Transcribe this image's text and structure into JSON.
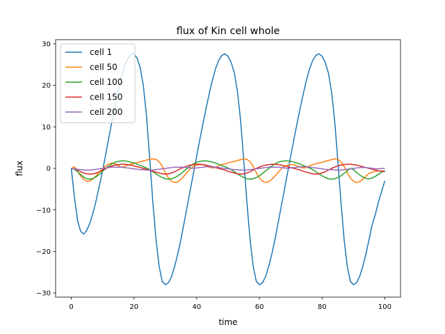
{
  "chart_data": {
    "type": "line",
    "title": "flux of Kin cell whole",
    "xlabel": "time",
    "ylabel": "flux",
    "xlim": [
      -5,
      105
    ],
    "ylim": [
      -31,
      31
    ],
    "xticks": [
      0,
      20,
      40,
      60,
      80,
      100
    ],
    "yticks": [
      -30,
      -20,
      -10,
      0,
      10,
      20,
      30
    ],
    "grid": false,
    "legend_position": "upper-left",
    "series": [
      {
        "name": "cell 1",
        "color": "#1f77b4",
        "x": [
          0,
          1,
          2,
          3,
          4,
          5,
          6,
          7,
          8,
          9,
          10,
          11,
          12,
          13,
          14,
          15,
          16,
          17,
          18,
          19,
          20,
          21,
          22,
          23,
          24,
          25,
          26,
          27,
          28,
          29,
          30,
          31,
          32,
          33,
          34,
          35,
          36,
          37,
          38,
          39,
          40,
          41,
          42,
          43,
          44,
          45,
          46,
          47,
          48,
          49,
          50,
          51,
          52,
          53,
          54,
          55,
          56,
          57,
          58,
          59,
          60,
          61,
          62,
          63,
          64,
          65,
          66,
          67,
          68,
          69,
          70,
          71,
          72,
          73,
          74,
          75,
          76,
          77,
          78,
          79,
          80,
          81,
          82,
          83,
          84,
          85,
          86,
          87,
          88,
          89,
          90,
          91,
          92,
          93,
          94,
          95,
          96,
          97,
          98,
          99,
          100
        ],
        "y": [
          0,
          -7,
          -12.5,
          -15.2,
          -15.8,
          -14.8,
          -13,
          -10.5,
          -7.5,
          -4,
          -0.5,
          3.5,
          7.5,
          11.5,
          15.2,
          18.8,
          22,
          24.6,
          26.4,
          27.5,
          27.6,
          26.5,
          24.2,
          19.8,
          12.5,
          2.5,
          -8,
          -17,
          -23.5,
          -27.2,
          -28,
          -27.5,
          -26,
          -23.5,
          -20.5,
          -17,
          -13,
          -9,
          -5,
          -1,
          3,
          7,
          10.8,
          14.5,
          18,
          21.2,
          24,
          26,
          27.2,
          27.6,
          27,
          25.5,
          23,
          18.5,
          11.5,
          2,
          -8,
          -17,
          -23.5,
          -27.2,
          -28,
          -27.5,
          -26,
          -23.5,
          -20.5,
          -17,
          -13,
          -9,
          -5,
          -1,
          3,
          7,
          10.8,
          14.5,
          18,
          21.2,
          24,
          26,
          27.2,
          27.6,
          27,
          25.5,
          23,
          18.5,
          11.5,
          2,
          -8,
          -17,
          -23.5,
          -27.2,
          -28,
          -27.5,
          -26,
          -23.5,
          -20.5,
          -17,
          -13.5,
          -11,
          -8,
          -5.5,
          -3
        ]
      },
      {
        "name": "cell 50",
        "color": "#ff7f0e",
        "x": [
          0,
          1,
          2,
          3,
          4,
          5,
          6,
          7,
          8,
          9,
          10,
          11,
          12,
          13,
          14,
          15,
          16,
          17,
          18,
          19,
          20,
          21,
          22,
          23,
          24,
          25,
          26,
          27,
          28,
          29,
          30,
          31,
          32,
          33,
          34,
          35,
          36,
          37,
          38,
          39,
          40,
          41,
          42,
          43,
          44,
          45,
          46,
          47,
          48,
          49,
          50,
          51,
          52,
          53,
          54,
          55,
          56,
          57,
          58,
          59,
          60,
          61,
          62,
          63,
          64,
          65,
          66,
          67,
          68,
          69,
          70,
          71,
          72,
          73,
          74,
          75,
          76,
          77,
          78,
          79,
          80,
          81,
          82,
          83,
          84,
          85,
          86,
          87,
          88,
          89,
          90,
          91,
          92,
          93,
          94,
          95,
          96,
          97,
          98,
          99,
          100
        ],
        "y": [
          0,
          0.4,
          -0.8,
          -1.8,
          -2.7,
          -3.1,
          -3.0,
          -2.5,
          -1.7,
          -0.8,
          0,
          0.6,
          1.1,
          1.3,
          1.1,
          0.6,
          0.3,
          0.5,
          0.8,
          1.0,
          1.2,
          1.4,
          1.6,
          1.8,
          2.0,
          2.2,
          2.3,
          2.2,
          1.6,
          0.5,
          -1.0,
          -2.3,
          -3.1,
          -3.4,
          -3.2,
          -2.6,
          -1.8,
          -0.9,
          -0.1,
          0.5,
          0.8,
          0.9,
          0.9,
          0.6,
          0.3,
          0.1,
          0.2,
          0.6,
          0.9,
          1.1,
          1.3,
          1.5,
          1.7,
          1.9,
          2.1,
          2.3,
          2.2,
          1.6,
          0.5,
          -1.0,
          -2.3,
          -3.1,
          -3.4,
          -3.2,
          -2.6,
          -1.8,
          -0.9,
          -0.1,
          0.5,
          0.8,
          0.9,
          0.9,
          0.6,
          0.3,
          0.1,
          0.2,
          0.6,
          0.9,
          1.1,
          1.3,
          1.5,
          1.7,
          1.9,
          2.1,
          2.3,
          2.2,
          1.6,
          0.5,
          -1.0,
          -2.3,
          -3.1,
          -3.4,
          -3.2,
          -2.6,
          -1.8,
          -1.2,
          -0.9,
          -0.7,
          -0.6,
          -0.6,
          -0.7
        ]
      },
      {
        "name": "cell 100",
        "color": "#2ca02c",
        "x": [
          0,
          1,
          2,
          3,
          4,
          5,
          6,
          7,
          8,
          9,
          10,
          11,
          12,
          13,
          14,
          15,
          16,
          17,
          18,
          19,
          20,
          21,
          22,
          23,
          24,
          25,
          26,
          27,
          28,
          29,
          30,
          31,
          32,
          33,
          34,
          35,
          36,
          37,
          38,
          39,
          40,
          41,
          42,
          43,
          44,
          45,
          46,
          47,
          48,
          49,
          50,
          51,
          52,
          53,
          54,
          55,
          56,
          57,
          58,
          59,
          60,
          61,
          62,
          63,
          64,
          65,
          66,
          67,
          68,
          69,
          70,
          71,
          72,
          73,
          74,
          75,
          76,
          77,
          78,
          79,
          80,
          81,
          82,
          83,
          84,
          85,
          86,
          87,
          88,
          89,
          90,
          91,
          92,
          93,
          94,
          95,
          96,
          97,
          98,
          99,
          100
        ],
        "y": [
          0,
          -0.2,
          -0.8,
          -1.5,
          -2.1,
          -2.5,
          -2.6,
          -2.4,
          -2.0,
          -1.4,
          -0.7,
          0,
          0.6,
          1.1,
          1.5,
          1.7,
          1.8,
          1.8,
          1.7,
          1.5,
          1.3,
          1.0,
          0.7,
          0.4,
          0.1,
          -0.3,
          -0.8,
          -1.3,
          -1.8,
          -2.2,
          -2.5,
          -2.6,
          -2.5,
          -2.2,
          -1.8,
          -1.2,
          -0.6,
          0,
          0.6,
          1.1,
          1.5,
          1.7,
          1.8,
          1.8,
          1.7,
          1.5,
          1.3,
          1.0,
          0.7,
          0.4,
          0.1,
          -0.3,
          -0.8,
          -1.3,
          -1.8,
          -2.2,
          -2.5,
          -2.6,
          -2.5,
          -2.2,
          -1.8,
          -1.2,
          -0.6,
          0,
          0.6,
          1.1,
          1.5,
          1.7,
          1.8,
          1.8,
          1.7,
          1.5,
          1.3,
          1.0,
          0.7,
          0.4,
          0.1,
          -0.3,
          -0.8,
          -1.3,
          -1.8,
          -2.2,
          -2.5,
          -2.6,
          -2.5,
          -2.2,
          -1.8,
          -1.2,
          -0.6,
          0,
          -0.3,
          -1.0,
          -1.6,
          -2.1,
          -2.4,
          -2.5,
          -2.3,
          -1.9,
          -1.4,
          -0.9,
          -0.5
        ]
      },
      {
        "name": "cell 150",
        "color": "#d62728",
        "x": [
          0,
          1,
          2,
          3,
          4,
          5,
          6,
          7,
          8,
          9,
          10,
          11,
          12,
          13,
          14,
          15,
          16,
          17,
          18,
          19,
          20,
          21,
          22,
          23,
          24,
          25,
          26,
          27,
          28,
          29,
          30,
          31,
          32,
          33,
          34,
          35,
          36,
          37,
          38,
          39,
          40,
          41,
          42,
          43,
          44,
          45,
          46,
          47,
          48,
          49,
          50,
          51,
          52,
          53,
          54,
          55,
          56,
          57,
          58,
          59,
          60,
          61,
          62,
          63,
          64,
          65,
          66,
          67,
          68,
          69,
          70,
          71,
          72,
          73,
          74,
          75,
          76,
          77,
          78,
          79,
          80,
          81,
          82,
          83,
          84,
          85,
          86,
          87,
          88,
          89,
          90,
          91,
          92,
          93,
          94,
          95,
          96,
          97,
          98,
          99,
          100
        ],
        "y": [
          0,
          -0.1,
          -0.4,
          -0.8,
          -1.1,
          -1.3,
          -1.4,
          -1.3,
          -1.1,
          -0.8,
          -0.4,
          0,
          0.3,
          0.6,
          0.8,
          0.9,
          1.0,
          1.0,
          0.9,
          0.8,
          0.6,
          0.4,
          0.2,
          0,
          -0.2,
          -0.4,
          -0.7,
          -0.9,
          -1.1,
          -1.3,
          -1.4,
          -1.3,
          -1.1,
          -0.8,
          -0.4,
          0,
          0.3,
          0.6,
          0.8,
          0.9,
          1.0,
          1.0,
          0.9,
          0.8,
          0.6,
          0.4,
          0.2,
          0,
          -0.2,
          -0.4,
          -0.7,
          -0.9,
          -1.1,
          -1.3,
          -1.4,
          -1.3,
          -1.1,
          -0.8,
          -0.4,
          0,
          0.3,
          0.6,
          0.8,
          0.9,
          1.0,
          1.0,
          0.9,
          0.8,
          0.6,
          0.4,
          0.2,
          0,
          -0.2,
          -0.4,
          -0.7,
          -0.9,
          -1.1,
          -1.3,
          -1.4,
          -1.3,
          -1.1,
          -0.8,
          -0.4,
          0,
          0.3,
          0.6,
          0.8,
          0.9,
          1.0,
          1.0,
          0.9,
          0.8,
          0.6,
          0.4,
          0.2,
          0,
          -0.2,
          -0.4,
          -0.6,
          -0.7,
          -0.8
        ]
      },
      {
        "name": "cell 200",
        "color": "#9467bd",
        "x": [
          0,
          1,
          2,
          3,
          4,
          5,
          6,
          7,
          8,
          9,
          10,
          11,
          12,
          13,
          14,
          15,
          16,
          17,
          18,
          19,
          20,
          21,
          22,
          23,
          24,
          25,
          26,
          27,
          28,
          29,
          30,
          31,
          32,
          33,
          34,
          35,
          36,
          37,
          38,
          39,
          40,
          41,
          42,
          43,
          44,
          45,
          46,
          47,
          48,
          49,
          50,
          51,
          52,
          53,
          54,
          55,
          56,
          57,
          58,
          59,
          60,
          61,
          62,
          63,
          64,
          65,
          66,
          67,
          68,
          69,
          70,
          71,
          72,
          73,
          74,
          75,
          76,
          77,
          78,
          79,
          80,
          81,
          82,
          83,
          84,
          85,
          86,
          87,
          88,
          89,
          90,
          91,
          92,
          93,
          94,
          95,
          96,
          97,
          98,
          99,
          100
        ],
        "y": [
          0,
          -0.1,
          -0.2,
          -0.3,
          -0.4,
          -0.4,
          -0.4,
          -0.3,
          -0.2,
          -0.1,
          0,
          0.1,
          0.2,
          0.3,
          0.3,
          0.3,
          0.3,
          0.2,
          0.1,
          0,
          -0.1,
          -0.2,
          -0.3,
          -0.3,
          -0.4,
          -0.4,
          -0.4,
          -0.3,
          -0.2,
          -0.1,
          0,
          0.1,
          0.2,
          0.3,
          0.3,
          0.3,
          0.3,
          0.2,
          0.1,
          0,
          0.1,
          0.2,
          0.3,
          0.4,
          0.4,
          0.4,
          0.3,
          0.2,
          0.1,
          0,
          -0.1,
          -0.2,
          -0.3,
          -0.3,
          -0.4,
          -0.4,
          -0.4,
          -0.3,
          -0.2,
          -0.1,
          0,
          0.1,
          0.2,
          0.3,
          0.3,
          0.3,
          0.3,
          0.2,
          0.1,
          0,
          0.1,
          0.2,
          0.3,
          0.4,
          0.4,
          0.4,
          0.3,
          0.2,
          0.1,
          0,
          -0.1,
          -0.2,
          -0.3,
          -0.3,
          -0.4,
          -0.4,
          -0.4,
          -0.3,
          -0.2,
          -0.1,
          0,
          0.1,
          0.2,
          0.2,
          0.2,
          0.1,
          0,
          -0.1,
          -0.1,
          0,
          0
        ]
      }
    ]
  }
}
